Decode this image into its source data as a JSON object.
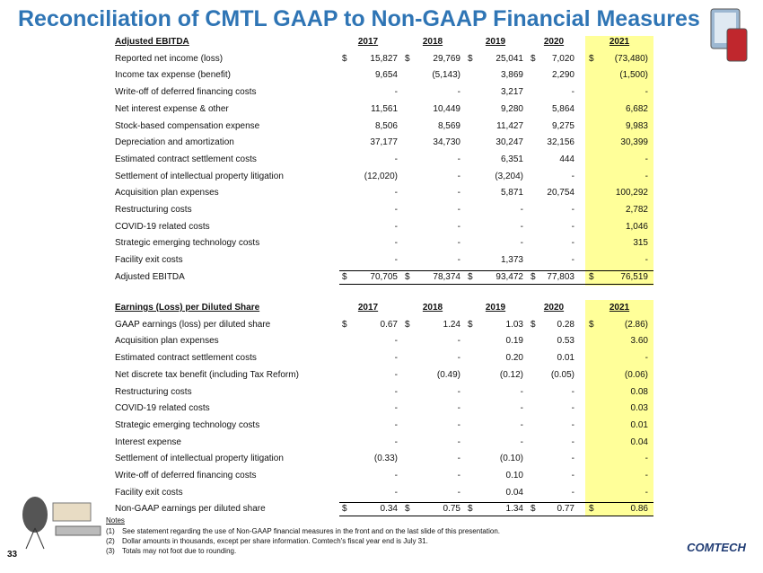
{
  "header": {
    "title": "Reconciliation of CMTL GAAP to Non-GAAP Financial Measures"
  },
  "tables": [
    {
      "columns": [
        "Adjusted EBITDA",
        "2017",
        "2018",
        "2019",
        "2020",
        "2021"
      ],
      "rows": [
        {
          "label": "Reported net income (loss)",
          "signs": [
            "$",
            "$",
            "$",
            "$",
            "$"
          ],
          "values": [
            "15,827",
            "29,769",
            "25,041",
            "7,020",
            "(73,480)"
          ]
        },
        {
          "label": "Income tax expense (benefit)",
          "values": [
            "9,654",
            "(5,143)",
            "3,869",
            "2,290",
            "(1,500)"
          ]
        },
        {
          "label": "Write-off of deferred financing costs",
          "values": [
            "-",
            "-",
            "3,217",
            "-",
            "-"
          ]
        },
        {
          "label": "Net interest expense & other",
          "values": [
            "11,561",
            "10,449",
            "9,280",
            "5,864",
            "6,682"
          ]
        },
        {
          "label": "Stock-based compensation expense",
          "values": [
            "8,506",
            "8,569",
            "11,427",
            "9,275",
            "9,983"
          ]
        },
        {
          "label": "Depreciation and amortization",
          "values": [
            "37,177",
            "34,730",
            "30,247",
            "32,156",
            "30,399"
          ]
        },
        {
          "label": "Estimated contract settlement costs",
          "values": [
            "-",
            "-",
            "6,351",
            "444",
            "-"
          ]
        },
        {
          "label": "Settlement of intellectual property litigation",
          "values": [
            "(12,020)",
            "-",
            "(3,204)",
            "-",
            "-"
          ]
        },
        {
          "label": "Acquisition plan expenses",
          "values": [
            "-",
            "-",
            "5,871",
            "20,754",
            "100,292"
          ]
        },
        {
          "label": "Restructuring costs",
          "values": [
            "-",
            "-",
            "-",
            "-",
            "2,782"
          ]
        },
        {
          "label": "COVID-19 related costs",
          "values": [
            "-",
            "-",
            "-",
            "-",
            "1,046"
          ]
        },
        {
          "label": "Strategic emerging technology costs",
          "values": [
            "-",
            "-",
            "-",
            "-",
            "315"
          ]
        },
        {
          "label": "Facility exit costs",
          "values": [
            "-",
            "-",
            "1,373",
            "-",
            "-"
          ]
        },
        {
          "label": "Adjusted EBITDA",
          "signs": [
            "$",
            "$",
            "$",
            "$",
            "$"
          ],
          "values": [
            "70,705",
            "78,374",
            "93,472",
            "77,803",
            "76,519"
          ]
        }
      ]
    },
    {
      "columns": [
        "Earnings (Loss) per Diluted Share",
        "2017",
        "2018",
        "2019",
        "2020",
        "2021"
      ],
      "rows": [
        {
          "label": "GAAP earnings (loss) per diluted share",
          "signs": [
            "$",
            "$",
            "$",
            "$",
            "$"
          ],
          "values": [
            "0.67",
            "1.24",
            "1.03",
            "0.28",
            "(2.86)"
          ]
        },
        {
          "label": "Acquisition plan expenses",
          "values": [
            "-",
            "-",
            "0.19",
            "0.53",
            "3.60"
          ]
        },
        {
          "label": "Estimated contract settlement costs",
          "values": [
            "-",
            "-",
            "0.20",
            "0.01",
            "-"
          ]
        },
        {
          "label": "Net discrete tax benefit (including Tax Reform)",
          "values": [
            "-",
            "(0.49)",
            "(0.12)",
            "(0.05)",
            "(0.06)"
          ]
        },
        {
          "label": "Restructuring costs",
          "values": [
            "-",
            "-",
            "-",
            "-",
            "0.08"
          ]
        },
        {
          "label": "COVID-19 related costs",
          "values": [
            "-",
            "-",
            "-",
            "-",
            "0.03"
          ]
        },
        {
          "label": "Strategic emerging technology costs",
          "values": [
            "-",
            "-",
            "-",
            "-",
            "0.01"
          ]
        },
        {
          "label": "Interest expense",
          "values": [
            "-",
            "-",
            "-",
            "-",
            "0.04"
          ]
        },
        {
          "label": "Settlement of intellectual property litigation",
          "values": [
            "(0.33)",
            "-",
            "(0.10)",
            "-",
            "-"
          ]
        },
        {
          "label": "Write-off of deferred financing costs",
          "values": [
            "-",
            "-",
            "0.10",
            "-",
            "-"
          ]
        },
        {
          "label": "Facility exit costs",
          "values": [
            "-",
            "-",
            "0.04",
            "-",
            "-"
          ]
        },
        {
          "label": "Non-GAAP earnings per diluted share",
          "signs": [
            "$",
            "$",
            "$",
            "$",
            "$"
          ],
          "values": [
            "0.34",
            "0.75",
            "1.34",
            "0.77",
            "0.86"
          ]
        }
      ]
    }
  ],
  "notes": {
    "title": "Notes",
    "items": [
      {
        "marker": "(1)",
        "text": "See statement regarding the use of Non-GAAP financial measures in the front and on the last slide of this presentation."
      },
      {
        "marker": "(2)",
        "text": "Dollar amounts in thousands, except per share information. Comtech's fiscal year end is July 31."
      },
      {
        "marker": "(3)",
        "text": "Totals may not foot due to rounding."
      }
    ]
  },
  "footer": {
    "page": "33",
    "logo": "COMTECH"
  }
}
